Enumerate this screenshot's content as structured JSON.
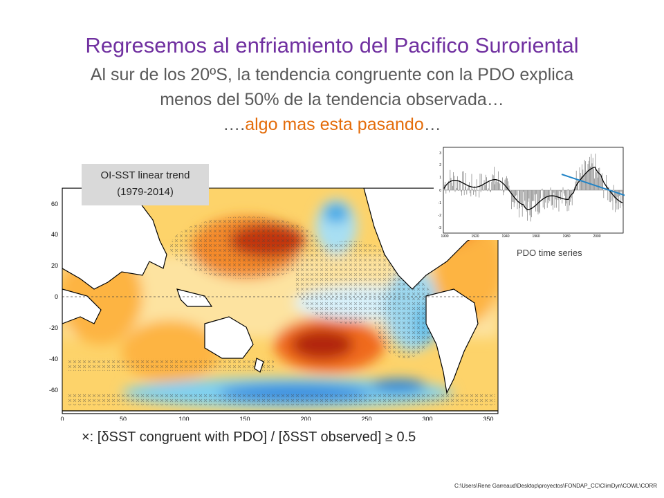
{
  "slide": {
    "title": "Regresemos  al enfriamiento del Pacifico Suroriental",
    "subtitle_line1": "Al sur de los 20ºS, la tendencia congruente con la PDO explica",
    "subtitle_line2": "menos del 50% de la tendencia observada…",
    "subtitle_prefix3": "….",
    "subtitle_accent": "algo mas esta pasando",
    "subtitle_suffix3": "…",
    "trend_label_line1": "OI-SST linear trend",
    "trend_label_line2": "(1979-2014)",
    "pdo_label": "PDO time series",
    "legend_text": "×: [δSST congruent with PDO] / [δSST observed] ≥ 0.5",
    "footer_path": "C:\\Users\\Rene Garreaud\\Desktop\\proyectos\\FONDAP_CC\\ClimDyn\\COWL\\CORR"
  },
  "colors": {
    "title": "#7030a0",
    "subtitle": "#595959",
    "accent": "#e46c0a",
    "warm_dark": "#b2260c",
    "warm_mid": "#f06a1e",
    "warm_light": "#fdb443",
    "yellow": "#fde79a",
    "cool_light": "#c9ecf7",
    "cool_mid": "#5dc4ec",
    "cool_dark": "#2b84d6",
    "trend_line": "#1f83c6"
  },
  "map": {
    "x_ticks": [
      "0",
      "50",
      "100",
      "150",
      "200",
      "250",
      "300",
      "350"
    ],
    "y_ticks": [
      "60",
      "40",
      "20",
      "0",
      "-20",
      "-40",
      "-60"
    ]
  },
  "pdo_chart": {
    "x_ticks": [
      "1900",
      "1920",
      "1940",
      "1960",
      "1980",
      "2000"
    ],
    "y_ticks": [
      "3",
      "2",
      "1",
      "0",
      "-1",
      "-2",
      "-3"
    ]
  }
}
